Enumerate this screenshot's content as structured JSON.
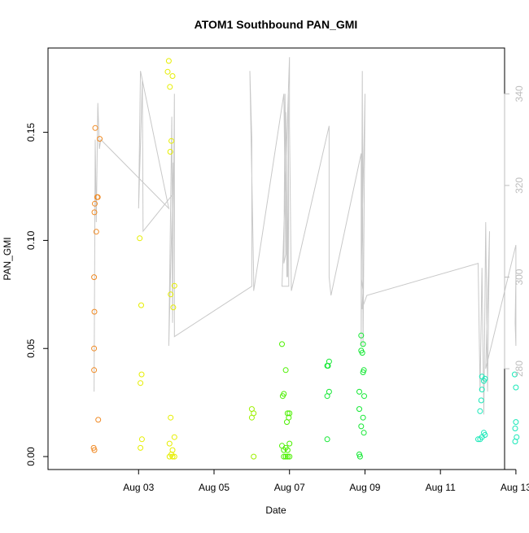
{
  "chart_data": {
    "type": "scatter",
    "title": "ATOM1 Southbound PAN_GMI",
    "xlabel": "Date",
    "ylabel": "PAN_GMI",
    "xlim": [
      0.6,
      12.7
    ],
    "ylim": [
      -0.006,
      0.189
    ],
    "y2lim": [
      258,
      350
    ],
    "grid": false,
    "x_ticks": [
      {
        "x": 3,
        "label": "Aug 03"
      },
      {
        "x": 5,
        "label": "Aug 05"
      },
      {
        "x": 7,
        "label": "Aug 07"
      },
      {
        "x": 9,
        "label": "Aug 09"
      },
      {
        "x": 11,
        "label": "Aug 11"
      },
      {
        "x": 13,
        "label": "Aug 13"
      }
    ],
    "y_ticks": [
      {
        "y": 0.0,
        "label": "0.00"
      },
      {
        "y": 0.05,
        "label": "0.05"
      },
      {
        "y": 0.1,
        "label": "0.10"
      },
      {
        "y": 0.15,
        "label": "0.15"
      }
    ],
    "y2_ticks": [
      {
        "y": 280,
        "label": "280"
      },
      {
        "y": 300,
        "label": "300"
      },
      {
        "y": 320,
        "label": "320"
      },
      {
        "y": 340,
        "label": "340"
      }
    ],
    "series": [
      {
        "color": "#f08a24",
        "points": [
          [
            1.85,
            0.152
          ],
          [
            1.97,
            0.147
          ],
          [
            1.9,
            0.12
          ],
          [
            1.92,
            0.12
          ],
          [
            1.84,
            0.117
          ],
          [
            1.83,
            0.113
          ],
          [
            1.88,
            0.104
          ],
          [
            1.82,
            0.083
          ],
          [
            1.83,
            0.067
          ],
          [
            1.82,
            0.05
          ],
          [
            1.82,
            0.04
          ],
          [
            1.93,
            0.017
          ],
          [
            1.81,
            0.004
          ],
          [
            1.83,
            0.003
          ]
        ]
      },
      {
        "color": "#e6ee00",
        "points": [
          [
            3.8,
            0.183
          ],
          [
            3.77,
            0.178
          ],
          [
            3.9,
            0.176
          ],
          [
            3.83,
            0.171
          ],
          [
            3.87,
            0.146
          ],
          [
            3.84,
            0.141
          ],
          [
            3.03,
            0.101
          ],
          [
            3.95,
            0.079
          ],
          [
            3.85,
            0.075
          ],
          [
            3.07,
            0.07
          ],
          [
            3.92,
            0.069
          ],
          [
            3.08,
            0.038
          ],
          [
            3.05,
            0.034
          ],
          [
            3.85,
            0.018
          ],
          [
            3.95,
            0.009
          ],
          [
            3.09,
            0.008
          ],
          [
            3.82,
            0.006
          ],
          [
            3.05,
            0.004
          ],
          [
            3.9,
            0.003
          ],
          [
            3.87,
            0.001
          ],
          [
            3.82,
            0.0
          ],
          [
            3.95,
            0.0
          ],
          [
            3.9,
            0.0
          ]
        ]
      },
      {
        "color": "#9df000",
        "points": [
          [
            6.0,
            0.022
          ],
          [
            6.05,
            0.02
          ],
          [
            6.0,
            0.018
          ],
          [
            6.05,
            0.0
          ]
        ]
      },
      {
        "color": "#4cf000",
        "points": [
          [
            6.8,
            0.052
          ],
          [
            6.9,
            0.04
          ],
          [
            6.85,
            0.029
          ],
          [
            6.82,
            0.028
          ],
          [
            6.95,
            0.02
          ],
          [
            7.0,
            0.02
          ],
          [
            6.98,
            0.018
          ],
          [
            6.93,
            0.016
          ],
          [
            6.8,
            0.005
          ],
          [
            7.0,
            0.006
          ],
          [
            6.85,
            0.003
          ],
          [
            6.9,
            0.004
          ],
          [
            6.95,
            0.003
          ],
          [
            6.85,
            0.0
          ],
          [
            6.9,
            0.0
          ],
          [
            6.95,
            0.0
          ],
          [
            7.0,
            0.0
          ]
        ]
      },
      {
        "color": "#12e832",
        "points": [
          [
            8.05,
            0.044
          ],
          [
            8.02,
            0.042
          ],
          [
            8.0,
            0.042
          ],
          [
            8.05,
            0.03
          ],
          [
            8.0,
            0.028
          ],
          [
            8.0,
            0.008
          ],
          [
            8.9,
            0.056
          ],
          [
            8.95,
            0.052
          ],
          [
            8.9,
            0.049
          ],
          [
            8.93,
            0.048
          ],
          [
            8.97,
            0.04
          ],
          [
            8.95,
            0.039
          ],
          [
            8.85,
            0.03
          ],
          [
            8.98,
            0.028
          ],
          [
            8.85,
            0.022
          ],
          [
            8.95,
            0.018
          ],
          [
            8.9,
            0.014
          ],
          [
            8.97,
            0.011
          ],
          [
            8.85,
            0.001
          ],
          [
            8.87,
            0.0
          ]
        ]
      },
      {
        "color": "#18e8b8",
        "points": [
          [
            12.1,
            0.037
          ],
          [
            12.15,
            0.035
          ],
          [
            12.18,
            0.036
          ],
          [
            12.1,
            0.031
          ],
          [
            12.08,
            0.026
          ],
          [
            12.05,
            0.021
          ],
          [
            12.15,
            0.011
          ],
          [
            12.18,
            0.01
          ],
          [
            12.1,
            0.009
          ],
          [
            12.05,
            0.008
          ],
          [
            12.0,
            0.008
          ],
          [
            12.97,
            0.038
          ],
          [
            13.0,
            0.032
          ],
          [
            13.0,
            0.016
          ],
          [
            12.98,
            0.013
          ],
          [
            13.02,
            0.009
          ],
          [
            12.98,
            0.007
          ]
        ]
      }
    ],
    "line_series": {
      "axis": "right",
      "color": "#c8c8c8",
      "points": [
        [
          1.82,
          275
        ],
        [
          1.85,
          330
        ],
        [
          1.88,
          312
        ],
        [
          1.92,
          338
        ],
        [
          1.96,
          328
        ],
        [
          2.0,
          330
        ],
        [
          3.8,
          315
        ],
        [
          3.05,
          345
        ],
        [
          3.0,
          315
        ],
        [
          3.1,
          343
        ],
        [
          3.12,
          310
        ],
        [
          3.9,
          318
        ],
        [
          3.92,
          325
        ],
        [
          3.8,
          285
        ],
        [
          3.88,
          335
        ],
        [
          3.9,
          290
        ],
        [
          3.95,
          340
        ],
        [
          3.95,
          287
        ],
        [
          6.0,
          298
        ],
        [
          6.0,
          330
        ],
        [
          5.95,
          345
        ],
        [
          6.05,
          300
        ],
        [
          6.05,
          297
        ],
        [
          6.85,
          340
        ],
        [
          6.9,
          305
        ],
        [
          6.85,
          303
        ],
        [
          6.88,
          340
        ],
        [
          6.93,
          300
        ],
        [
          6.9,
          336
        ],
        [
          6.95,
          300
        ],
        [
          6.97,
          340
        ],
        [
          6.98,
          298
        ],
        [
          6.8,
          298
        ],
        [
          7.0,
          348
        ],
        [
          7.0,
          333
        ],
        [
          7.05,
          297
        ],
        [
          8.05,
          333
        ],
        [
          8.05,
          300
        ],
        [
          8.1,
          296
        ],
        [
          8.9,
          327
        ],
        [
          8.9,
          285
        ],
        [
          8.93,
          345
        ],
        [
          8.95,
          285
        ],
        [
          9.0,
          340
        ],
        [
          8.9,
          300
        ],
        [
          8.95,
          297
        ],
        [
          8.92,
          293
        ],
        [
          9.05,
          296
        ],
        [
          12.0,
          303
        ],
        [
          12.05,
          275
        ],
        [
          12.1,
          302
        ],
        [
          12.15,
          270
        ],
        [
          12.2,
          312
        ],
        [
          12.25,
          275
        ],
        [
          12.3,
          310
        ],
        [
          12.2,
          280
        ],
        [
          13.0,
          307
        ],
        [
          13.0,
          285
        ],
        [
          12.98,
          290
        ],
        [
          13.0,
          300
        ]
      ]
    }
  }
}
